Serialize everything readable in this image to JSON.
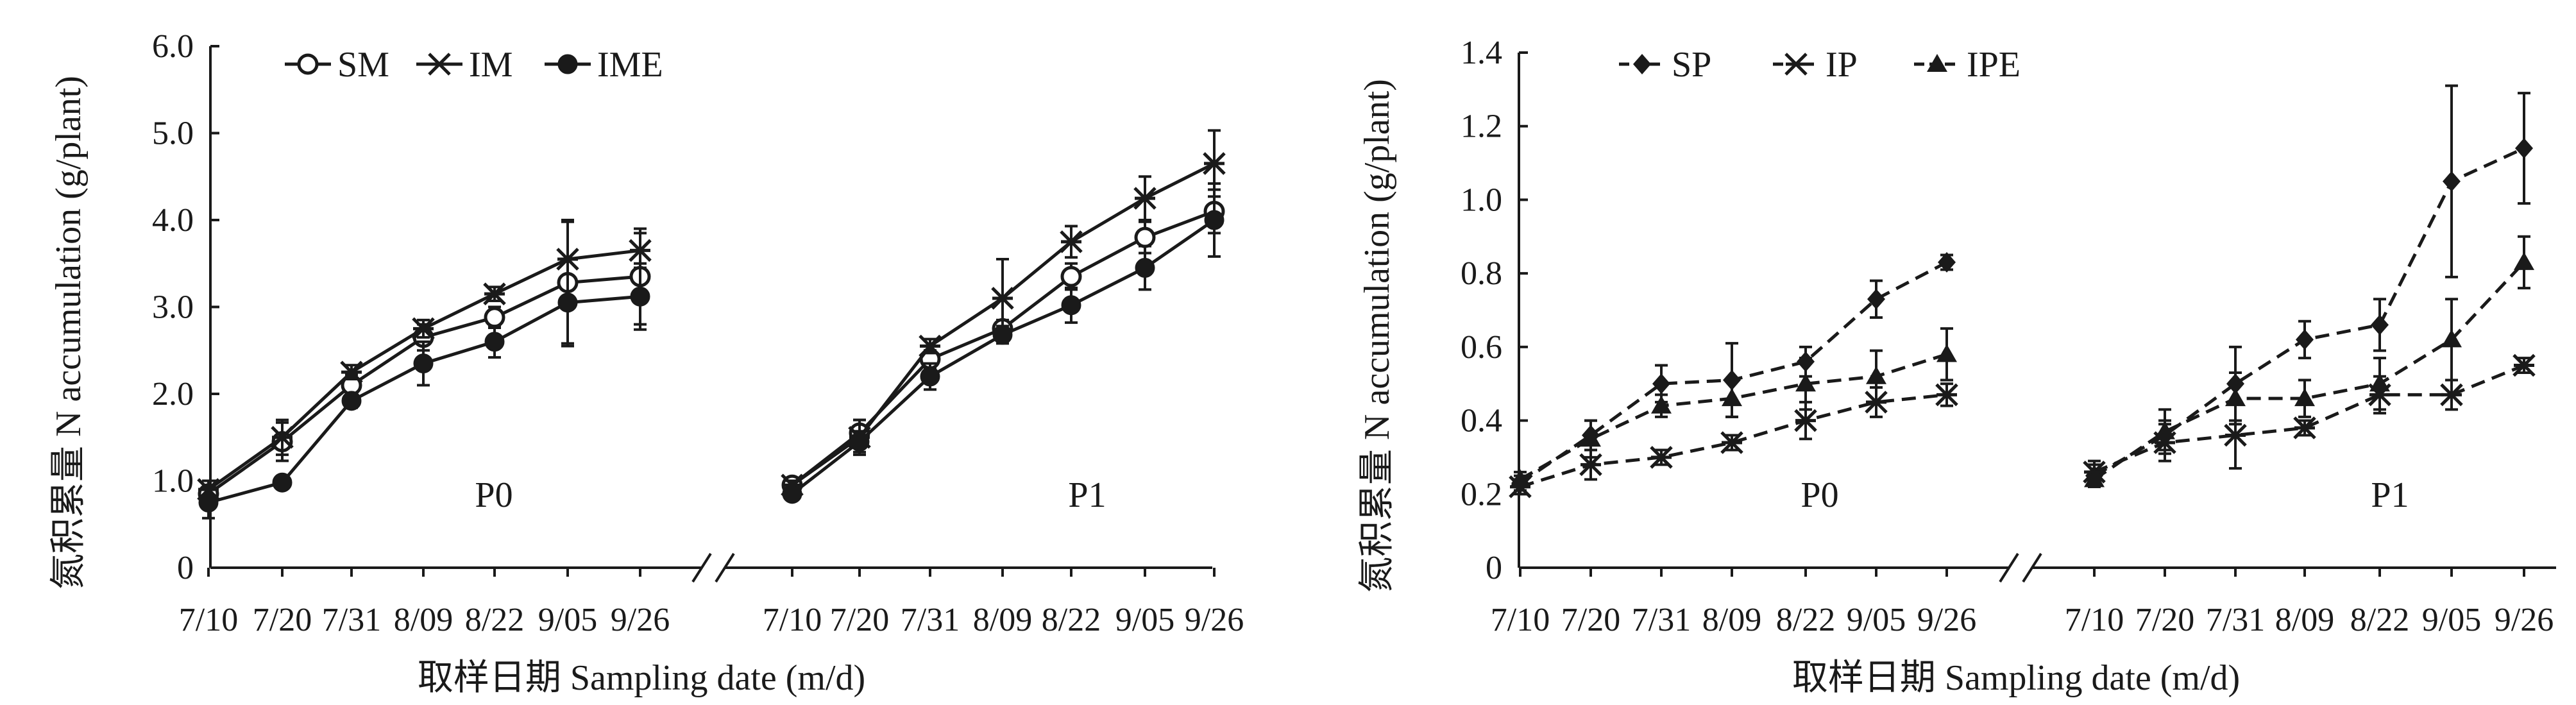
{
  "chart_data": [
    {
      "type": "line",
      "title": "",
      "ylabel": "氮积累量 N accumulation (g/plant)",
      "xlabel": "取样日期 Sampling date (m/d)",
      "ylim": [
        0,
        6
      ],
      "yticks": [
        "0",
        "1.0",
        "2.0",
        "3.0",
        "4.0",
        "5.0",
        "6.0"
      ],
      "x": [
        "7/10",
        "7/20",
        "7/31",
        "8/09",
        "8/22",
        "9/05",
        "9/26"
      ],
      "groups": [
        "P0",
        "P1"
      ],
      "legend_position": "top-left",
      "line_style": "solid",
      "series": [
        {
          "name": "SM",
          "marker": "circle-open",
          "P0": {
            "values": [
              0.85,
              1.45,
              2.1,
              2.65,
              2.88,
              3.28,
              3.35
            ],
            "err": [
              0.08,
              0.22,
              0.12,
              0.15,
              0.12,
              0.7,
              0.55
            ]
          },
          "P1": {
            "values": [
              0.95,
              1.55,
              2.4,
              2.75,
              3.35,
              3.8,
              4.1
            ],
            "err": [
              0.05,
              0.15,
              0.1,
              0.1,
              0.15,
              0.18,
              0.25
            ]
          }
        },
        {
          "name": "IM",
          "marker": "star",
          "P0": {
            "values": [
              0.9,
              1.5,
              2.25,
              2.75,
              3.15,
              3.55,
              3.65
            ],
            "err": [
              0.1,
              0.2,
              0.08,
              0.1,
              0.08,
              0.45,
              0.2
            ]
          },
          "P1": {
            "values": [
              0.95,
              1.5,
              2.55,
              3.1,
              3.75,
              4.25,
              4.65
            ],
            "err": [
              0.05,
              0.2,
              0.08,
              0.45,
              0.18,
              0.25,
              0.38
            ]
          }
        },
        {
          "name": "IME",
          "marker": "circle-filled",
          "P0": {
            "values": [
              0.75,
              0.98,
              1.92,
              2.35,
              2.6,
              3.05,
              3.12
            ],
            "err": [
              0.18,
              0.04,
              0.08,
              0.25,
              0.18,
              0.5,
              0.38
            ]
          },
          "P1": {
            "values": [
              0.85,
              1.45,
              2.2,
              2.68,
              3.02,
              3.45,
              4.0
            ],
            "err": [
              0.05,
              0.12,
              0.15,
              0.1,
              0.2,
              0.25,
              0.42
            ]
          }
        }
      ]
    },
    {
      "type": "line",
      "title": "",
      "ylabel": "氮积累量 N accumulation (g/plant)",
      "xlabel": "取样日期 Sampling date (m/d)",
      "ylim": [
        0,
        1.4
      ],
      "yticks": [
        "0",
        "0.2",
        "0.4",
        "0.6",
        "0.8",
        "1.0",
        "1.2",
        "1.4"
      ],
      "x": [
        "7/10",
        "7/20",
        "7/31",
        "8/09",
        "8/22",
        "9/05",
        "9/26"
      ],
      "groups": [
        "P0",
        "P1"
      ],
      "legend_position": "top-left",
      "line_style": "dashed",
      "series": [
        {
          "name": "SP",
          "marker": "diamond",
          "P0": {
            "values": [
              0.23,
              0.36,
              0.5,
              0.51,
              0.56,
              0.73,
              0.83
            ],
            "err": [
              0.02,
              0.04,
              0.05,
              0.1,
              0.04,
              0.05,
              0.02
            ]
          },
          "P1": {
            "values": [
              0.25,
              0.36,
              0.5,
              0.62,
              0.66,
              1.05,
              1.14
            ],
            "err": [
              0.03,
              0.04,
              0.1,
              0.05,
              0.07,
              0.26,
              0.15
            ]
          }
        },
        {
          "name": "IP",
          "marker": "star",
          "P0": {
            "values": [
              0.22,
              0.28,
              0.3,
              0.34,
              0.4,
              0.45,
              0.47
            ],
            "err": [
              0.02,
              0.04,
              0.02,
              0.02,
              0.05,
              0.04,
              0.03
            ]
          },
          "P1": {
            "values": [
              0.26,
              0.34,
              0.36,
              0.38,
              0.47,
              0.47,
              0.55
            ],
            "err": [
              0.03,
              0.05,
              0.09,
              0.02,
              0.05,
              0.04,
              0.02
            ]
          }
        },
        {
          "name": "IPE",
          "marker": "triangle",
          "P0": {
            "values": [
              0.24,
              0.35,
              0.44,
              0.46,
              0.5,
              0.52,
              0.58
            ],
            "err": [
              0.02,
              0.05,
              0.03,
              0.05,
              0.07,
              0.07,
              0.07
            ]
          },
          "P1": {
            "values": [
              0.24,
              0.37,
              0.46,
              0.46,
              0.5,
              0.62,
              0.83
            ],
            "err": [
              0.02,
              0.06,
              0.07,
              0.05,
              0.07,
              0.11,
              0.07
            ]
          }
        }
      ]
    }
  ]
}
